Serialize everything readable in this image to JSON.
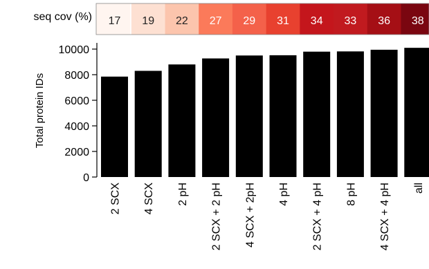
{
  "chart_data": {
    "type": "bar",
    "categories": [
      "2 SCX",
      "4 SCX",
      "2 pH",
      "2 SCX + 2 pH",
      "4 SCX + 2pH",
      "4 pH",
      "2 SCX + 4 pH",
      "8 pH",
      "4 SCX + 4 pH",
      "all"
    ],
    "values": [
      7850,
      8300,
      8800,
      9270,
      9500,
      9520,
      9800,
      9820,
      9950,
      10100
    ],
    "ylabel": "Total protein IDs",
    "xlabel": "",
    "ylim": [
      0,
      10000
    ],
    "yticks": [
      0,
      2000,
      4000,
      6000,
      8000,
      10000
    ],
    "grid": false,
    "bar_color": "#000000",
    "heatmap": {
      "label": "seq cov (%)",
      "values": [
        17,
        19,
        22,
        27,
        29,
        31,
        34,
        33,
        36,
        38
      ],
      "colors": [
        "#fff5f0",
        "#fde0d2",
        "#fcc5ad",
        "#fb7a5a",
        "#f4614a",
        "#e8412f",
        "#c4161c",
        "#c11a1f",
        "#a50f15",
        "#7a0610"
      ],
      "text_colors": [
        "#222222",
        "#222222",
        "#222222",
        "#ffffff",
        "#ffffff",
        "#ffffff",
        "#ffffff",
        "#ffffff",
        "#ffffff",
        "#ffffff"
      ]
    }
  }
}
